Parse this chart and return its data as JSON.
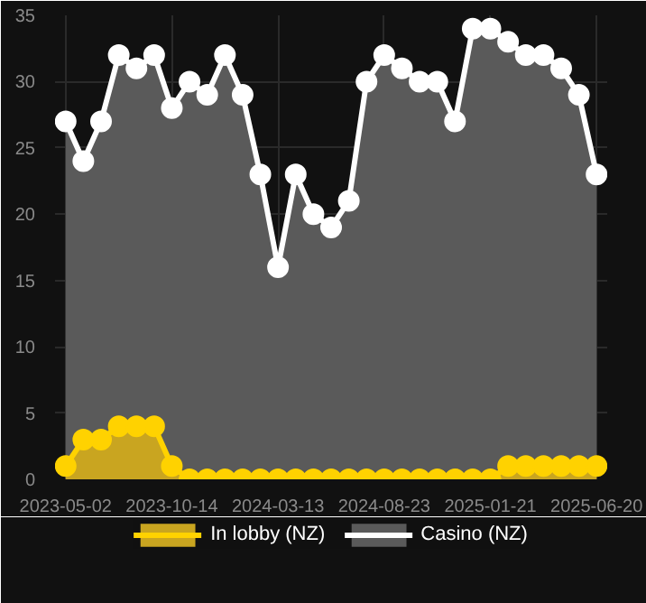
{
  "chart_data": {
    "type": "area",
    "categories": [
      "2023-05-02",
      null,
      null,
      null,
      null,
      null,
      "2023-10-14",
      null,
      null,
      null,
      null,
      null,
      "2024-03-13",
      null,
      null,
      null,
      null,
      null,
      "2024-08-23",
      null,
      null,
      null,
      null,
      null,
      "2025-01-21",
      null,
      null,
      null,
      null,
      null,
      "2025-06-20"
    ],
    "series": [
      {
        "name": "In lobby (NZ)",
        "color": "#ffd200",
        "values": [
          1,
          3,
          3,
          4,
          4,
          4,
          1,
          0,
          0,
          0,
          0,
          0,
          0,
          0,
          0,
          0,
          0,
          0,
          0,
          0,
          0,
          0,
          0,
          0,
          0,
          1,
          1,
          1,
          1,
          1,
          1
        ]
      },
      {
        "name": "Casino (NZ)",
        "color": "#ffffff",
        "values": [
          27,
          24,
          27,
          32,
          31,
          32,
          28,
          30,
          29,
          32,
          29,
          23,
          16,
          23,
          20,
          19,
          21,
          30,
          32,
          31,
          30,
          30,
          27,
          34,
          34,
          33,
          32,
          32,
          31,
          29,
          23
        ]
      }
    ],
    "ylim": [
      0,
      35
    ],
    "yticks": [
      0,
      5,
      10,
      15,
      20,
      25,
      30,
      35
    ],
    "grid": true,
    "legend": "bottom",
    "marker": "circle"
  }
}
